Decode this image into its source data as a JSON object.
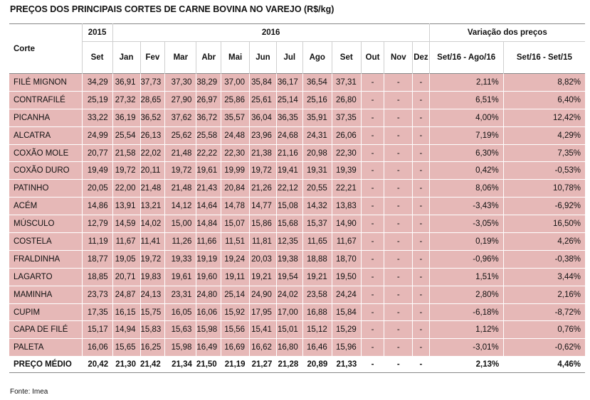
{
  "title": "PREÇOS DOS PRINCIPAIS CORTES DE CARNE BOVINA NO VAREJO (R$/kg)",
  "header": {
    "corte": "Corte",
    "year_2015": "2015",
    "year_2016": "2016",
    "variation": "Variação dos preços",
    "months": [
      "Set",
      "Jan",
      "Fev",
      "Mar",
      "Abr",
      "Mai",
      "Jun",
      "Jul",
      "Ago",
      "Set",
      "Out",
      "Nov",
      "Dez"
    ],
    "var_cols": [
      "Set/16 - Ago/16",
      "Set/16 - Set/15"
    ]
  },
  "rows": [
    {
      "name": "FILÉ MIGNON",
      "values": [
        "34,29",
        "36,91",
        "37,73",
        "37,30",
        "38,29",
        "37,00",
        "35,84",
        "36,17",
        "36,54",
        "37,31",
        "-",
        "-",
        "-"
      ],
      "var": [
        "2,11%",
        "8,82%"
      ]
    },
    {
      "name": "CONTRAFILÉ",
      "values": [
        "25,19",
        "27,32",
        "28,65",
        "27,90",
        "26,97",
        "25,86",
        "25,61",
        "25,14",
        "25,16",
        "26,80",
        "-",
        "-",
        "-"
      ],
      "var": [
        "6,51%",
        "6,40%"
      ]
    },
    {
      "name": "PICANHA",
      "values": [
        "33,22",
        "36,19",
        "36,52",
        "37,62",
        "36,72",
        "35,57",
        "36,04",
        "36,35",
        "35,91",
        "37,35",
        "-",
        "-",
        "-"
      ],
      "var": [
        "4,00%",
        "12,42%"
      ]
    },
    {
      "name": "ALCATRA",
      "values": [
        "24,99",
        "25,54",
        "26,13",
        "25,62",
        "25,58",
        "24,48",
        "23,96",
        "24,68",
        "24,31",
        "26,06",
        "-",
        "-",
        "-"
      ],
      "var": [
        "7,19%",
        "4,29%"
      ]
    },
    {
      "name": "COXÃO MOLE",
      "values": [
        "20,77",
        "21,58",
        "22,02",
        "21,48",
        "22,22",
        "22,30",
        "21,38",
        "21,16",
        "20,98",
        "22,30",
        "-",
        "-",
        "-"
      ],
      "var": [
        "6,30%",
        "7,35%"
      ]
    },
    {
      "name": "COXÃO DURO",
      "values": [
        "19,49",
        "19,72",
        "20,11",
        "19,72",
        "19,61",
        "19,99",
        "19,72",
        "19,41",
        "19,31",
        "19,39",
        "-",
        "-",
        "-"
      ],
      "var": [
        "0,42%",
        "-0,53%"
      ]
    },
    {
      "name": "PATINHO",
      "values": [
        "20,05",
        "22,00",
        "21,48",
        "21,48",
        "21,43",
        "20,84",
        "21,26",
        "22,12",
        "20,55",
        "22,21",
        "-",
        "-",
        "-"
      ],
      "var": [
        "8,06%",
        "10,78%"
      ]
    },
    {
      "name": "ACÉM",
      "values": [
        "14,86",
        "13,91",
        "13,21",
        "14,12",
        "14,64",
        "14,78",
        "14,77",
        "15,08",
        "14,32",
        "13,83",
        "-",
        "-",
        "-"
      ],
      "var": [
        "-3,43%",
        "-6,92%"
      ]
    },
    {
      "name": "MÚSCULO",
      "values": [
        "12,79",
        "14,59",
        "14,02",
        "15,00",
        "14,84",
        "15,07",
        "15,86",
        "15,68",
        "15,37",
        "14,90",
        "-",
        "-",
        "-"
      ],
      "var": [
        "-3,05%",
        "16,50%"
      ]
    },
    {
      "name": "COSTELA",
      "values": [
        "11,19",
        "11,67",
        "11,41",
        "11,26",
        "11,66",
        "11,51",
        "11,81",
        "12,35",
        "11,65",
        "11,67",
        "-",
        "-",
        "-"
      ],
      "var": [
        "0,19%",
        "4,26%"
      ]
    },
    {
      "name": "FRALDINHA",
      "values": [
        "18,77",
        "19,05",
        "19,72",
        "19,33",
        "19,19",
        "19,24",
        "20,03",
        "19,38",
        "18,88",
        "18,70",
        "-",
        "-",
        "-"
      ],
      "var": [
        "-0,96%",
        "-0,38%"
      ]
    },
    {
      "name": "LAGARTO",
      "values": [
        "18,85",
        "20,71",
        "19,83",
        "19,61",
        "19,60",
        "19,11",
        "19,21",
        "19,54",
        "19,21",
        "19,50",
        "-",
        "-",
        "-"
      ],
      "var": [
        "1,51%",
        "3,44%"
      ]
    },
    {
      "name": "MAMINHA",
      "values": [
        "23,73",
        "24,87",
        "24,13",
        "23,31",
        "24,80",
        "25,14",
        "24,90",
        "24,02",
        "23,58",
        "24,24",
        "-",
        "-",
        "-"
      ],
      "var": [
        "2,80%",
        "2,16%"
      ]
    },
    {
      "name": "CUPIM",
      "values": [
        "17,35",
        "16,15",
        "15,75",
        "16,05",
        "16,06",
        "15,92",
        "17,95",
        "17,00",
        "16,88",
        "15,84",
        "-",
        "-",
        "-"
      ],
      "var": [
        "-6,18%",
        "-8,72%"
      ]
    },
    {
      "name": "CAPA DE FILÉ",
      "values": [
        "15,17",
        "14,94",
        "15,83",
        "15,63",
        "15,98",
        "15,56",
        "15,41",
        "15,01",
        "15,12",
        "15,29",
        "-",
        "-",
        "-"
      ],
      "var": [
        "1,12%",
        "0,76%"
      ]
    },
    {
      "name": "PALETA",
      "values": [
        "16,06",
        "15,65",
        "16,25",
        "15,98",
        "16,49",
        "16,69",
        "16,62",
        "16,80",
        "16,46",
        "15,96",
        "-",
        "-",
        "-"
      ],
      "var": [
        "-3,01%",
        "-0,62%"
      ]
    }
  ],
  "average": {
    "name": "PREÇO MÉDIO",
    "values": [
      "20,42",
      "21,30",
      "21,42",
      "21,34",
      "21,50",
      "21,19",
      "21,27",
      "21,28",
      "20,89",
      "21,33",
      "-",
      "-",
      "-"
    ],
    "var": [
      "2,13%",
      "4,46%"
    ]
  },
  "source": "Fonte: Imea",
  "colors": {
    "row_fill": "#e6b8b7"
  }
}
